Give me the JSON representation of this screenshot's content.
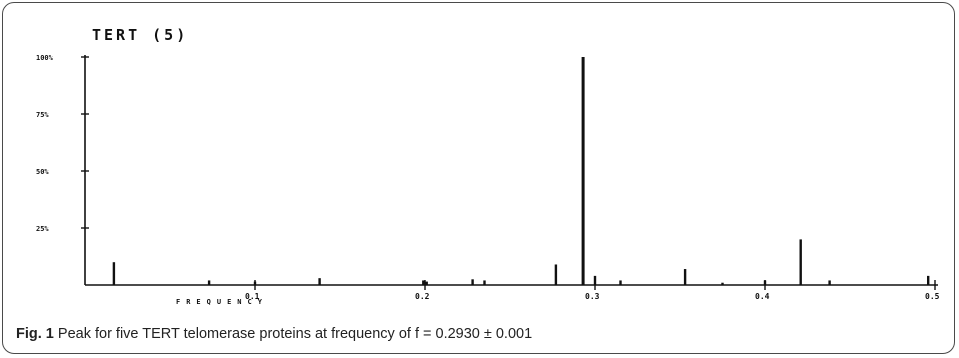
{
  "chart_data": {
    "type": "bar",
    "title": "TERT (5)",
    "xlabel": "FREQUENCY",
    "ylabel": "",
    "xlim": [
      0.0,
      0.5
    ],
    "ylim": [
      0,
      100
    ],
    "grid": false,
    "y_ticks": [
      {
        "value": 100,
        "label": "100%"
      },
      {
        "value": 75,
        "label": "75%"
      },
      {
        "value": 50,
        "label": "50%"
      },
      {
        "value": 25,
        "label": "25%"
      }
    ],
    "x_ticks": [
      {
        "value": 0.1,
        "label": "0.1"
      },
      {
        "value": 0.2,
        "label": "0.2"
      },
      {
        "value": 0.3,
        "label": "0.3"
      },
      {
        "value": 0.4,
        "label": "0.4"
      },
      {
        "value": 0.5,
        "label": "0.5"
      }
    ],
    "x": [
      0.017,
      0.073,
      0.1,
      0.138,
      0.199,
      0.201,
      0.228,
      0.235,
      0.277,
      0.293,
      0.3,
      0.315,
      0.353,
      0.375,
      0.4,
      0.421,
      0.438,
      0.496
    ],
    "values": [
      10,
      2,
      1.5,
      3,
      2,
      1.5,
      2.5,
      2,
      9,
      100,
      4,
      2,
      7,
      1,
      2,
      20,
      2,
      4
    ]
  },
  "caption": {
    "label": "Fig. 1",
    "text": "Peak for five TERT telomerase proteins at frequency of f = 0.2930 ± 0.001"
  },
  "colors": {
    "ink": "#111111",
    "frame": "#4a4a4a"
  }
}
